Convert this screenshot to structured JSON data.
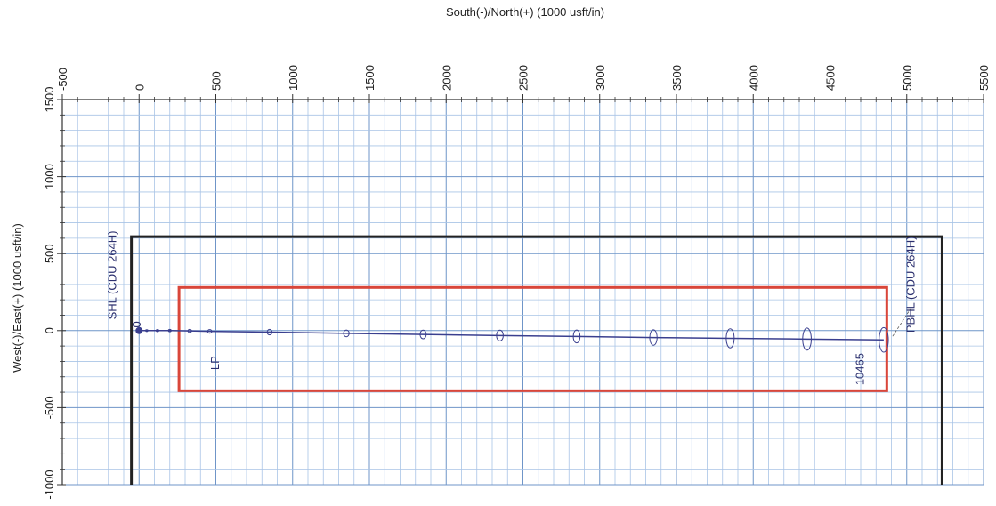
{
  "chart_data": {
    "type": "line",
    "title": "",
    "xlabel": "South(-)/North(+) (1000 usft/in)",
    "ylabel": "West(-)/East(+) (1000 usft/in)",
    "xlim": [
      -500,
      5500
    ],
    "ylim": [
      -1000,
      1500
    ],
    "x_ticks": [
      -500,
      0,
      500,
      1000,
      1500,
      2000,
      2500,
      3000,
      3500,
      4000,
      4500,
      5000,
      5500
    ],
    "x_tick_labels": [
      "-500",
      "0",
      "500",
      "1000",
      "1500",
      "2000",
      "2500",
      "3000",
      "3500",
      "4000",
      "4500",
      "5000",
      "5500"
    ],
    "y_ticks": [
      1500,
      1000,
      500,
      0,
      -500,
      -1000
    ],
    "y_tick_labels": [
      "1500",
      "1000",
      "500",
      "0",
      "-500",
      "-1000"
    ],
    "grid": true,
    "series": [
      {
        "x": [
          0,
          50,
          120,
          200,
          330,
          460,
          850,
          1350,
          1850,
          2350,
          2850,
          3350,
          3850,
          4350,
          4850
        ],
        "y": [
          0,
          0,
          0,
          0,
          -2,
          -5,
          -10,
          -18,
          -25,
          -32,
          -38,
          -45,
          -50,
          -55,
          -60
        ],
        "color": "#3a3f8f"
      }
    ],
    "uncertainty_ellipses": [
      {
        "x": 50,
        "y": 0,
        "rx": 8,
        "ry": 6
      },
      {
        "x": 120,
        "y": 0,
        "rx": 9,
        "ry": 7
      },
      {
        "x": 200,
        "y": 0,
        "rx": 10,
        "ry": 8
      },
      {
        "x": 330,
        "y": -2,
        "rx": 12,
        "ry": 10
      },
      {
        "x": 460,
        "y": -5,
        "rx": 14,
        "ry": 12
      },
      {
        "x": 850,
        "y": -10,
        "rx": 16,
        "ry": 18
      },
      {
        "x": 1350,
        "y": -18,
        "rx": 18,
        "ry": 22
      },
      {
        "x": 1850,
        "y": -25,
        "rx": 20,
        "ry": 28
      },
      {
        "x": 2350,
        "y": -32,
        "rx": 22,
        "ry": 35
      },
      {
        "x": 2850,
        "y": -38,
        "rx": 22,
        "ry": 42
      },
      {
        "x": 3350,
        "y": -45,
        "rx": 24,
        "ry": 50
      },
      {
        "x": 3850,
        "y": -50,
        "rx": 26,
        "ry": 62
      },
      {
        "x": 4350,
        "y": -55,
        "rx": 28,
        "ry": 72
      },
      {
        "x": 4850,
        "y": -60,
        "rx": 30,
        "ry": 80
      }
    ],
    "outer_boundary": {
      "x": [
        -50,
        5230
      ],
      "y": [
        -1000,
        610
      ],
      "color": "#222222"
    },
    "target_box": {
      "x": [
        260,
        4870
      ],
      "y": [
        -390,
        280
      ],
      "color": "#d9463a"
    },
    "annotations": [
      {
        "text": "SHL (CDU 264H)",
        "x": -150,
        "y": 360,
        "rotation": -90
      },
      {
        "text": "0",
        "x": 10,
        "y": 40,
        "rotation": -90
      },
      {
        "text": "LP",
        "x": 520,
        "y": -210,
        "rotation": -90
      },
      {
        "text": "10465",
        "x": 4720,
        "y": -250,
        "rotation": -90
      },
      {
        "text": "PBHL (CDU 264H)",
        "x": 5050,
        "y": 300,
        "rotation": -90
      }
    ]
  }
}
